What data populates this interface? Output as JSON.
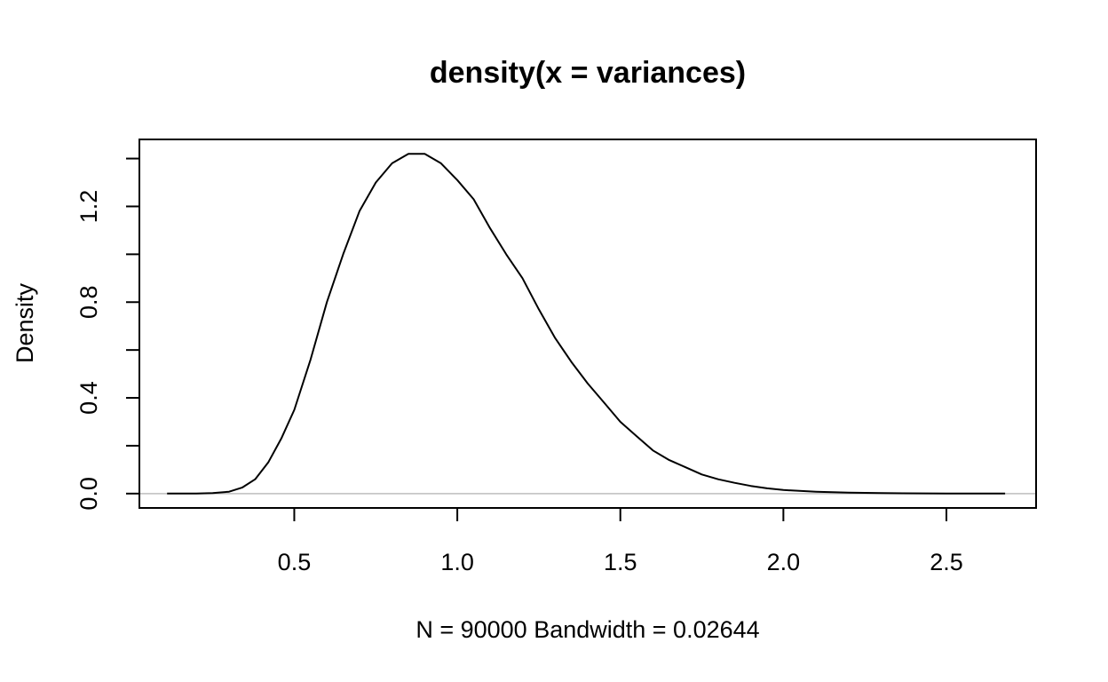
{
  "chart_data": {
    "type": "line",
    "title": "density(x = variances)",
    "xlabel": "N = 90000   Bandwidth = 0.02644",
    "ylabel": "Density",
    "xlim": [
      0.025,
      2.775
    ],
    "ylim": [
      -0.06,
      1.48
    ],
    "x_ticks": [
      0.5,
      1.0,
      1.5,
      2.0,
      2.5
    ],
    "x_tick_labels": [
      "0.5",
      "1.0",
      "1.5",
      "2.0",
      "2.5"
    ],
    "y_ticks": [
      0.0,
      0.2,
      0.4,
      0.6,
      0.8,
      1.0,
      1.2,
      1.4
    ],
    "y_tick_labels": [
      "0.0",
      "",
      "0.4",
      "",
      "0.8",
      "",
      "1.2",
      ""
    ],
    "baseline": 0,
    "baseline_color": "#bebebe",
    "line_color": "#000000",
    "grid": false,
    "series": [
      {
        "x": [
          0.11,
          0.2,
          0.25,
          0.3,
          0.34,
          0.38,
          0.42,
          0.46,
          0.5,
          0.55,
          0.6,
          0.65,
          0.7,
          0.75,
          0.8,
          0.85,
          0.9,
          0.95,
          1.0,
          1.05,
          1.1,
          1.15,
          1.2,
          1.25,
          1.3,
          1.35,
          1.4,
          1.45,
          1.5,
          1.55,
          1.6,
          1.65,
          1.7,
          1.75,
          1.8,
          1.85,
          1.9,
          1.95,
          2.0,
          2.1,
          2.2,
          2.3,
          2.5,
          2.68
        ],
        "y": [
          0.0,
          0.0,
          0.002,
          0.008,
          0.025,
          0.06,
          0.13,
          0.23,
          0.35,
          0.56,
          0.8,
          1.0,
          1.18,
          1.3,
          1.38,
          1.42,
          1.42,
          1.38,
          1.31,
          1.23,
          1.11,
          1.0,
          0.9,
          0.77,
          0.65,
          0.55,
          0.46,
          0.38,
          0.3,
          0.24,
          0.18,
          0.14,
          0.11,
          0.08,
          0.06,
          0.045,
          0.032,
          0.022,
          0.015,
          0.008,
          0.004,
          0.002,
          0.0,
          0.0
        ]
      }
    ]
  }
}
